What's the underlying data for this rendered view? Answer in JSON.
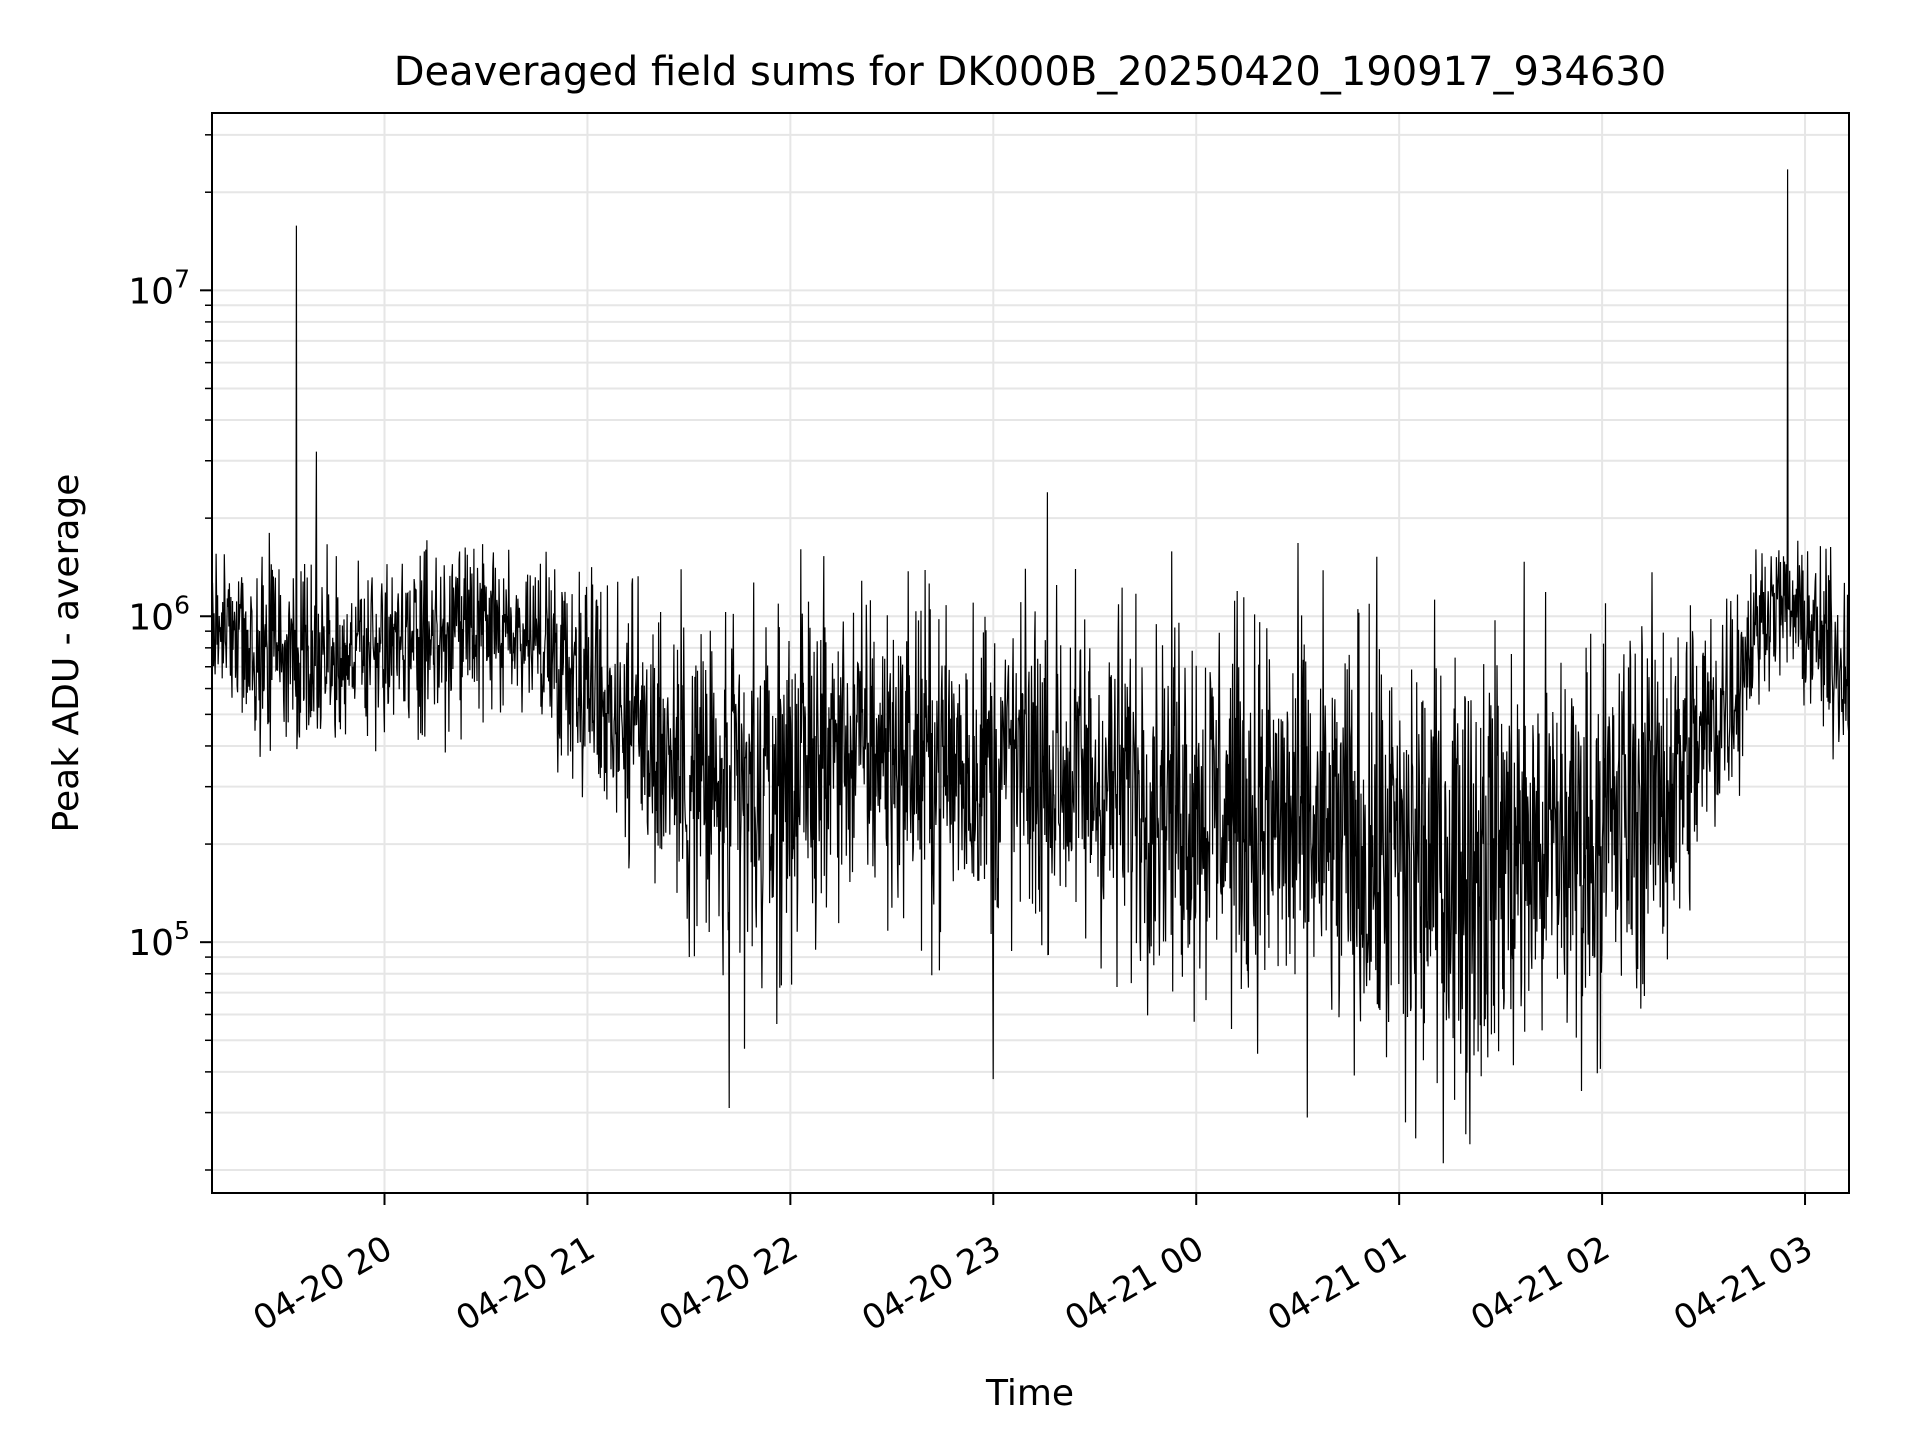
{
  "chart_data": {
    "type": "line",
    "title": "Deaveraged field sums for DK000B_20250420_190917_934630",
    "xlabel": "Time",
    "ylabel": "Peak ADU - average",
    "yscale": "log",
    "xlim": [
      "2025-04-20 19:09",
      "2025-04-21 03:13"
    ],
    "ylim": [
      17000,
      35000000
    ],
    "x_ticks": [
      "04-20 20",
      "04-20 21",
      "04-20 22",
      "04-20 23",
      "04-21 00",
      "04-21 01",
      "04-21 02",
      "04-21 03"
    ],
    "y_ticks": [
      {
        "base": "10",
        "exp": "5",
        "value": 100000
      },
      {
        "base": "10",
        "exp": "6",
        "value": 1000000
      },
      {
        "base": "10",
        "exp": "7",
        "value": 10000000
      }
    ],
    "grid": true,
    "legend": "none",
    "line_color": "#000000",
    "grid_color": "#e6e6e6",
    "series": [
      {
        "x": [
          "2025-04-20 19:09",
          "2025-04-20 19:15",
          "2025-04-20 19:20",
          "2025-04-20 19:25",
          "2025-04-20 19:30",
          "2025-04-20 19:35",
          "2025-04-20 19:40",
          "2025-04-20 19:45",
          "2025-04-20 19:50",
          "2025-04-20 19:55",
          "2025-04-20 20:00",
          "2025-04-20 20:10",
          "2025-04-20 20:20",
          "2025-04-20 20:30",
          "2025-04-20 20:40",
          "2025-04-20 20:50",
          "2025-04-20 21:00",
          "2025-04-20 21:10",
          "2025-04-20 21:20",
          "2025-04-20 21:30",
          "2025-04-20 21:40",
          "2025-04-20 21:50",
          "2025-04-20 22:00",
          "2025-04-20 22:10",
          "2025-04-20 22:20",
          "2025-04-20 22:30",
          "2025-04-20 22:40",
          "2025-04-20 22:50",
          "2025-04-20 23:00",
          "2025-04-20 23:10",
          "2025-04-20 23:20",
          "2025-04-20 23:30",
          "2025-04-20 23:40",
          "2025-04-20 23:50",
          "2025-04-21 00:00",
          "2025-04-21 00:10",
          "2025-04-21 00:20",
          "2025-04-21 00:30",
          "2025-04-21 00:40",
          "2025-04-21 00:50",
          "2025-04-21 01:00",
          "2025-04-21 01:10",
          "2025-04-21 01:20",
          "2025-04-21 01:30",
          "2025-04-21 01:40",
          "2025-04-21 01:50",
          "2025-04-21 02:00",
          "2025-04-21 02:10",
          "2025-04-21 02:20",
          "2025-04-21 02:30",
          "2025-04-21 02:40",
          "2025-04-21 02:45",
          "2025-04-21 02:50",
          "2025-04-21 02:55",
          "2025-04-21 03:00",
          "2025-04-21 03:05",
          "2025-04-21 03:13"
        ],
        "y": [
          1000000,
          900000,
          750000,
          800000,
          780000,
          750000,
          760000,
          780000,
          800000,
          780000,
          800000,
          820000,
          850000,
          900000,
          880000,
          800000,
          650000,
          500000,
          420000,
          330000,
          260000,
          250000,
          320000,
          380000,
          400000,
          380000,
          360000,
          350000,
          350000,
          340000,
          330000,
          310000,
          300000,
          290000,
          270000,
          260000,
          240000,
          220000,
          200000,
          190000,
          180000,
          175000,
          180000,
          190000,
          195000,
          205000,
          220000,
          260000,
          310000,
          420000,
          650000,
          900000,
          1100000,
          1050000,
          950000,
          800000,
          700000
        ]
      }
    ],
    "spikes": [
      {
        "x": "2025-04-20 19:34",
        "y": 15800000
      },
      {
        "x": "2025-04-21 02:55",
        "y": 23500000
      },
      {
        "x": "2025-04-20 19:40",
        "y": 3200000
      },
      {
        "x": "2025-04-20 23:16",
        "y": 2400000
      }
    ],
    "min_points": [
      {
        "x": "2025-04-20 21:42",
        "y": 31000
      },
      {
        "x": "2025-04-21 01:02",
        "y": 28000
      },
      {
        "x": "2025-04-21 01:21",
        "y": 24000
      },
      {
        "x": "2025-04-21 01:05",
        "y": 25000
      },
      {
        "x": "2025-04-20 23:00",
        "y": 38000
      }
    ]
  }
}
